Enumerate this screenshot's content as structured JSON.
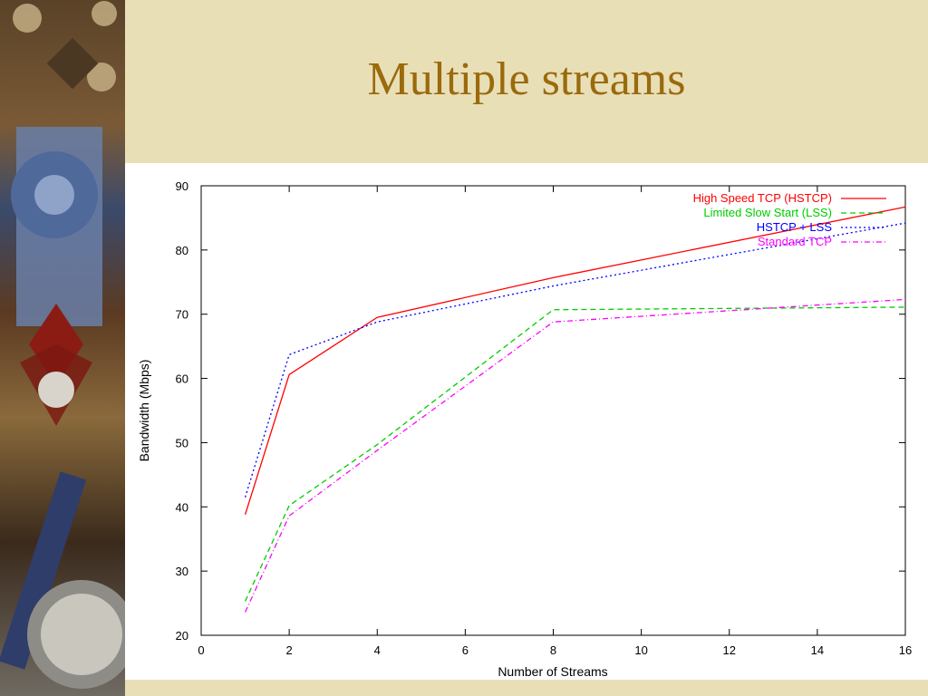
{
  "slide": {
    "title": "Multiple streams",
    "background_color": "#e9dfb7",
    "title_color": "#9a6a0c"
  },
  "chart_data": {
    "type": "line",
    "title": "",
    "xlabel": "Number of Streams",
    "ylabel": "Bandwidth (Mbps)",
    "xlim": [
      0,
      16
    ],
    "ylim": [
      20,
      90
    ],
    "x_ticks": [
      0,
      2,
      4,
      6,
      8,
      10,
      12,
      14,
      16
    ],
    "y_ticks": [
      20,
      30,
      40,
      50,
      60,
      70,
      80,
      90
    ],
    "grid": false,
    "legend_position": "top-right",
    "series": [
      {
        "name": "High Speed TCP (HSTCP)",
        "color": "#ff0000",
        "dash": "solid",
        "x": [
          1,
          2,
          4,
          8,
          16
        ],
        "y": [
          38.8,
          60.6,
          69.5,
          75.7,
          86.7
        ]
      },
      {
        "name": "Limited Slow Start (LSS)",
        "color": "#00cc00",
        "dash": "dashed",
        "x": [
          1,
          2,
          4,
          8,
          16
        ],
        "y": [
          25.3,
          40.2,
          49.7,
          70.7,
          71.1
        ]
      },
      {
        "name": "HSTCP + LSS",
        "color": "#0000ff",
        "dash": "dotted",
        "x": [
          1,
          2,
          4,
          8,
          16
        ],
        "y": [
          41.5,
          63.7,
          68.8,
          74.4,
          84.2
        ]
      },
      {
        "name": "Standard TCP",
        "color": "#ff00ff",
        "dash": "dashdot",
        "x": [
          1,
          2,
          4,
          8,
          16
        ],
        "y": [
          23.6,
          38.6,
          48.8,
          68.8,
          72.3
        ]
      }
    ]
  }
}
